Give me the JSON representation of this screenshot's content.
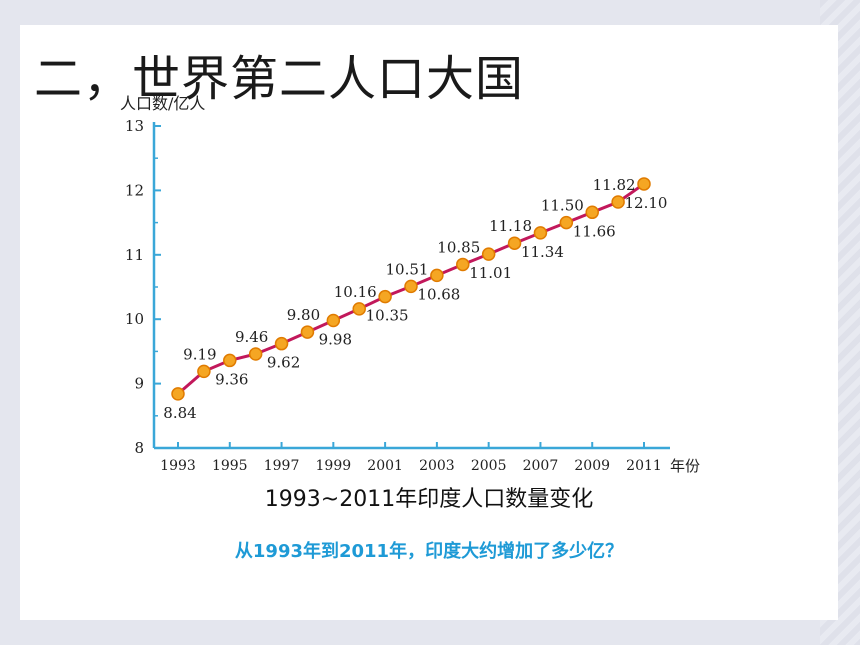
{
  "slide": {
    "title": "二，世界第二人口大国",
    "caption": "1993~2011年印度人口数量变化",
    "question": "从1993年到2011年，印度大约增加了多少亿？"
  },
  "colors": {
    "axis": "#3aa7d8",
    "line": "#c2185b",
    "marker": "#f5a623",
    "marker_edge": "#e07b00",
    "question": "#1e9ad6"
  },
  "chart_data": {
    "type": "line",
    "ylabel": "人口数/亿人",
    "xlabel": "年份",
    "ylim": [
      8,
      13
    ],
    "xlim": [
      1993,
      2011
    ],
    "yticks": [
      8,
      9,
      10,
      11,
      12,
      13
    ],
    "xticks": [
      "1993",
      "1995",
      "1997",
      "1999",
      "2001",
      "2003",
      "2005",
      "2007",
      "2009",
      "2011"
    ],
    "x": [
      1993,
      1994,
      1995,
      1996,
      1997,
      1998,
      1999,
      2000,
      2001,
      2002,
      2003,
      2004,
      2005,
      2006,
      2007,
      2008,
      2009,
      2010,
      2011
    ],
    "y": [
      8.84,
      9.19,
      9.36,
      9.46,
      9.62,
      9.8,
      9.98,
      10.16,
      10.35,
      10.51,
      10.68,
      10.85,
      11.01,
      11.18,
      11.34,
      11.5,
      11.66,
      11.82,
      12.1
    ],
    "labels": [
      "8.84",
      "9.19",
      "9.36",
      "9.46",
      "9.62",
      "9.80",
      "9.98",
      "10.16",
      "10.35",
      "10.51",
      "10.68",
      "10.85",
      "11.01",
      "11.18",
      "11.34",
      "11.50",
      "11.66",
      "11.82",
      "12.10"
    ],
    "grid": false
  }
}
